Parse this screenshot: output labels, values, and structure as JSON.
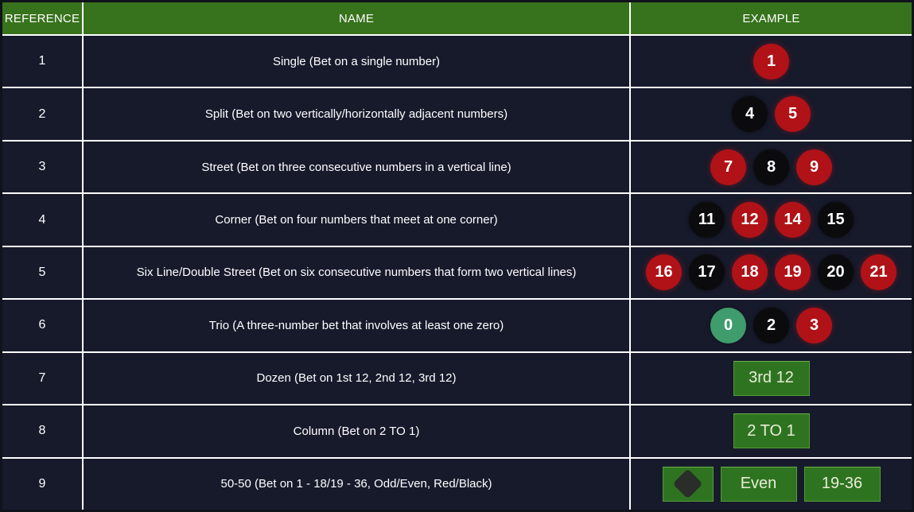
{
  "colors": {
    "header_bg": "#37721c",
    "header_text": "#ffffff",
    "row_bg": "#171a2b",
    "row_text": "#ffffff",
    "grid_line": "#ffffff",
    "outer_border": "#10121c",
    "chip_red": "#b01217",
    "chip_black": "#0b0b0d",
    "chip_green": "#3f9c6c",
    "chip_text": "#ffffff",
    "button_green": "#2e7420",
    "button_text": "#e9ecd8",
    "diamond": "#2a2d2a"
  },
  "table": {
    "headers": [
      {
        "label": "REFERENCE"
      },
      {
        "label": "NAME"
      },
      {
        "label": "EXAMPLE"
      }
    ],
    "rows": [
      {
        "reference": "1",
        "name": "Single (Bet on a single number)",
        "example": {
          "chips": [
            {
              "label": "1",
              "color": "red"
            }
          ]
        }
      },
      {
        "reference": "2",
        "name": "Split (Bet on two vertically/horizontally adjacent numbers)",
        "example": {
          "chips": [
            {
              "label": "4",
              "color": "black"
            },
            {
              "label": "5",
              "color": "red"
            }
          ]
        }
      },
      {
        "reference": "3",
        "name": "Street (Bet on three consecutive numbers in a vertical line)",
        "example": {
          "chips": [
            {
              "label": "7",
              "color": "red"
            },
            {
              "label": "8",
              "color": "black"
            },
            {
              "label": "9",
              "color": "red"
            }
          ]
        }
      },
      {
        "reference": "4",
        "name": "Corner (Bet on four numbers that meet at one corner)",
        "example": {
          "chips": [
            {
              "label": "11",
              "color": "black"
            },
            {
              "label": "12",
              "color": "red"
            },
            {
              "label": "14",
              "color": "red"
            },
            {
              "label": "15",
              "color": "black"
            }
          ]
        }
      },
      {
        "reference": "5",
        "name": "Six Line/Double Street (Bet on six consecutive numbers that form two vertical lines)",
        "example": {
          "chips": [
            {
              "label": "16",
              "color": "red"
            },
            {
              "label": "17",
              "color": "black"
            },
            {
              "label": "18",
              "color": "red"
            },
            {
              "label": "19",
              "color": "red"
            },
            {
              "label": "20",
              "color": "black"
            },
            {
              "label": "21",
              "color": "red"
            }
          ]
        }
      },
      {
        "reference": "6",
        "name": "Trio (A three-number bet that involves at least one zero)",
        "example": {
          "chips": [
            {
              "label": "0",
              "color": "green"
            },
            {
              "label": "2",
              "color": "black"
            },
            {
              "label": "3",
              "color": "red"
            }
          ]
        }
      },
      {
        "reference": "7",
        "name": "Dozen (Bet on 1st 12, 2nd 12, 3rd 12)",
        "example": {
          "buttons": [
            {
              "label": "3rd 12"
            }
          ]
        }
      },
      {
        "reference": "8",
        "name": "Column (Bet on 2 TO 1)",
        "example": {
          "buttons": [
            {
              "label": "2 TO 1"
            }
          ]
        }
      },
      {
        "reference": "9",
        "name": "50-50 (Bet on 1 - 18/19 - 36, Odd/Even, Red/Black)",
        "example": {
          "buttons": [
            {
              "icon": "black-diamond"
            },
            {
              "label": "Even"
            },
            {
              "label": "19-36"
            }
          ]
        }
      }
    ]
  }
}
